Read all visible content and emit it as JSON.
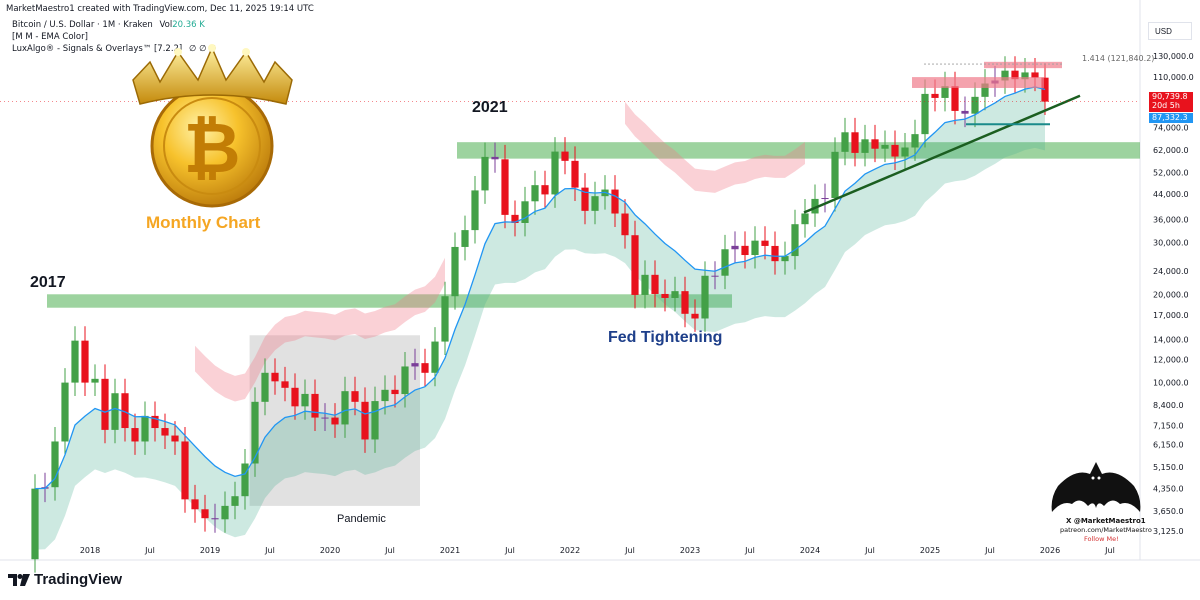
{
  "header": {
    "created_line": "MarketMaestro1 created with TradingView.com, Dec 11, 2025 19:14 UTC",
    "symbol_line": "Bitcoin / U.S. Dollar · 1M · Kraken",
    "volume_label": "Vol",
    "volume_value": "20.36 K",
    "indicator_1": "[M M - EMA Color]",
    "indicator_2": "LuxAlgo® - Signals & Overlays™ [7.2.2]",
    "indicator_2_suffix": "∅ ∅ ∅"
  },
  "currency": "USD",
  "brand": "TradingView",
  "colors": {
    "up": "#43a047",
    "down": "#e8121d",
    "neutral": "#7b3f99",
    "ema": "#2196f3",
    "cloud_green": "#4caf92",
    "cloud_red": "#f07a8a",
    "zone_green": "#4caf50",
    "trendline": "#1b5e20",
    "gold": "#f5a623"
  },
  "annotations": {
    "label_2017": "2017",
    "label_2021": "2021",
    "fed_tightening": "Fed Tightening",
    "pandemic": "Pandemic",
    "monthly_chart": "Monthly Chart",
    "fib_label": "1.414 (121,840.2)",
    "watermark_line1": "X @MarketMaestro1",
    "watermark_line2": "patreon.com/MarketMaestro",
    "watermark_line3": "Follow Me!"
  },
  "price_tags": {
    "last_price": "90,739.8",
    "countdown": "20d 5h",
    "ema_value": "87,332.3"
  },
  "chart_data": {
    "type": "candlestick",
    "title": "",
    "x_ticks": [
      "2018",
      "Jul",
      "2019",
      "Jul",
      "2020",
      "Jul",
      "2021",
      "Jul",
      "2022",
      "Jul",
      "2023",
      "Jul",
      "2024",
      "Jul",
      "2025",
      "Jul",
      "2026",
      "Jul"
    ],
    "y_ticks": [
      "130,000.0",
      "110,000.0",
      "90,000.0",
      "74,000.0",
      "62,000.0",
      "52,000.0",
      "44,000.0",
      "36,000.0",
      "30,000.0",
      "24,000.0",
      "20,000.0",
      "17,000.0",
      "14,000.0",
      "12,000.0",
      "10,000.0",
      "8,400.0",
      "7,150.0",
      "6,150.0",
      "5,150.0",
      "4,350.0",
      "3,650.0",
      "3,125.0"
    ],
    "y_scale": "log",
    "ylim": [
      3000,
      135000
    ],
    "xlim": [
      2017.25,
      2026.75
    ],
    "close_values": [
      4350,
      4400,
      6300,
      10000,
      13900,
      10000,
      10300,
      6900,
      9200,
      7000,
      6300,
      7700,
      7000,
      6600,
      6300,
      4000,
      3700,
      3450,
      3420,
      3800,
      4100,
      5300,
      8600,
      10800,
      10100,
      9600,
      8300,
      9150,
      7600,
      7600,
      7200,
      9350,
      8600,
      6400,
      8650,
      9450,
      9140,
      11350,
      11650,
      10800,
      13800,
      19700,
      29000,
      33100,
      45200,
      58800,
      57700,
      37300,
      35000,
      41500,
      47100,
      43800,
      61300,
      57000,
      46200,
      38500,
      43200,
      45500,
      37700,
      31800,
      19900,
      23300,
      20050,
      19430,
      20500,
      17160,
      16540,
      23130,
      23140,
      28480,
      29250,
      27220,
      30470,
      29230,
      25940,
      27000,
      34670,
      37720,
      42280,
      42580,
      61180,
      71330,
      60670,
      67500,
      62700,
      64600,
      58970,
      63300,
      70300,
      96400,
      93400,
      102400,
      84350,
      82550,
      94200,
      104600,
      107100,
      115700,
      108200,
      114100,
      109500,
      90740
    ],
    "close_start": "2017-07",
    "series": [
      {
        "name": "[M M - EMA Color]",
        "kind": "line"
      },
      {
        "name": "LuxAlgo® - Signals & Overlays™ [7.2.2]",
        "kind": "band"
      }
    ],
    "zones": [
      {
        "label": "2017",
        "low": 18000,
        "high": 20000
      },
      {
        "label": "2021",
        "low": 58000,
        "high": 66000
      }
    ],
    "fib_level": {
      "label": "1.414 (121,840.2)",
      "value": 121840.2
    },
    "last_price": 90739.8,
    "grid": false
  }
}
